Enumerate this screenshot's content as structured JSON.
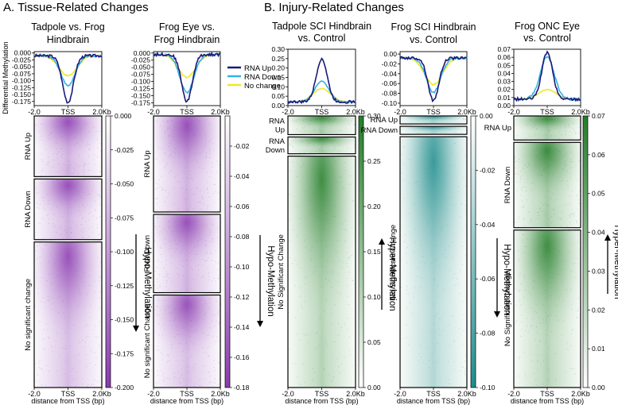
{
  "sections": {
    "a": "A. Tissue-Related Changes",
    "b": "B. Injury-Related Changes"
  },
  "common": {
    "ylabel": "Differential Methylation",
    "xlabel": "distance from TSS (bp)",
    "xticks": [
      "-2.0",
      "TSS",
      "2.0Kb"
    ]
  },
  "legend": [
    "RNA Up",
    "RNA Down",
    "No change"
  ],
  "series_colors": {
    "RNA Up": "#1a1a7a",
    "RNA Down": "#3ab0e8",
    "No change": "#f2e62a"
  },
  "chart_data": [
    {
      "type": "line",
      "title_lines": [
        "Tadpole vs. Frog",
        "Hindbrain"
      ],
      "x": [
        -2.0,
        0.0,
        2.0
      ],
      "xticks": [
        "-2.0",
        "TSS",
        "2.0Kb"
      ],
      "ylim": [
        -0.19,
        0.005
      ],
      "yticks": [
        "0.000",
        "-0.025",
        "-0.050",
        "-0.075",
        "-0.100",
        "-0.125",
        "-0.150",
        "-0.175"
      ],
      "series": [
        {
          "name": "RNA Up",
          "baseline": -0.01,
          "peak": -0.178
        },
        {
          "name": "RNA Down",
          "baseline": -0.01,
          "peak": -0.118
        },
        {
          "name": "No change",
          "baseline": -0.01,
          "peak": -0.082
        }
      ],
      "heatmap": {
        "groups": [
          "RNA Up",
          "RNA Down",
          "No significant change"
        ],
        "group_sizes": [
          1,
          1,
          2.4
        ],
        "colorbar_ticks": [
          "0.000",
          "-0.025",
          "-0.050",
          "-0.075",
          "-0.100",
          "-0.125",
          "-0.150",
          "-0.175",
          "-0.200"
        ],
        "colorbar_range": [
          0.0,
          -0.2
        ],
        "colormap": "purple",
        "color": "#8a3ab0",
        "arrow": "down",
        "arrow_label": "Hypo-Methylation"
      }
    },
    {
      "type": "line",
      "title_lines": [
        "Frog Eye vs.",
        "Frog Hindbrain"
      ],
      "x": [
        -2.0,
        0.0,
        2.0
      ],
      "xticks": [
        "-2.0",
        "TSS",
        "2.0Kb"
      ],
      "ylim": [
        -0.185,
        0.005
      ],
      "yticks": [
        "0.000",
        "-0.025",
        "-0.050",
        "-0.075",
        "-0.100",
        "-0.125",
        "-0.150",
        "-0.175"
      ],
      "series": [
        {
          "name": "RNA Up",
          "baseline": -0.005,
          "peak": -0.17
        },
        {
          "name": "RNA Down",
          "baseline": -0.005,
          "peak": -0.138
        },
        {
          "name": "No change",
          "baseline": -0.005,
          "peak": -0.085
        }
      ],
      "heatmap": {
        "groups": [
          "RNA Up",
          "RNA Down",
          "No significant Change"
        ],
        "group_sizes": [
          1.35,
          1.1,
          1.3
        ],
        "colorbar_ticks": [
          "-0.02",
          "-0.04",
          "-0.06",
          "-0.08",
          "-0.10",
          "-0.12",
          "-0.14",
          "-0.16",
          "-0.18"
        ],
        "colorbar_range": [
          0.0,
          -0.18
        ],
        "colormap": "purple",
        "color": "#9b47d6",
        "arrow": "down",
        "arrow_label": "Hypo-Methylation"
      }
    },
    {
      "type": "line",
      "title_lines": [
        "Tadpole SCI Hindbrain",
        "vs. Control"
      ],
      "x": [
        -2.0,
        0.0,
        2.0
      ],
      "xticks": [
        "-2.0",
        "TSS",
        "2.0Kb"
      ],
      "ylim": [
        0.0,
        0.3
      ],
      "yticks": [
        "0.00",
        "0.05",
        "0.10",
        "0.15",
        "0.20",
        "0.25",
        "0.30"
      ],
      "series": [
        {
          "name": "RNA Up",
          "baseline": 0.02,
          "peak": 0.25
        },
        {
          "name": "RNA Down",
          "baseline": 0.02,
          "peak": 0.13
        },
        {
          "name": "No change",
          "baseline": 0.02,
          "peak": 0.09
        }
      ],
      "heatmap": {
        "groups": [
          "RNA Up",
          "RNA Down",
          "No Significant Change"
        ],
        "group_sizes": [
          0.5,
          0.45,
          6.2
        ],
        "colorbar_ticks": [
          "0.30",
          "0.25",
          "0.20",
          "0.15",
          "0.10",
          "0.05",
          "0.00"
        ],
        "colorbar_range": [
          0.3,
          0.0
        ],
        "colormap": "green",
        "color": "#2e8b2e",
        "arrow": "up",
        "arrow_label": "Hyper-Methylation"
      }
    },
    {
      "type": "line",
      "title_lines": [
        "Frog SCI Hindbrain",
        "vs. Control"
      ],
      "x": [
        -2.0,
        0.0,
        2.0
      ],
      "xticks": [
        "-2.0",
        "TSS",
        "2.0Kb"
      ],
      "ylim": [
        -0.105,
        0.005
      ],
      "yticks": [
        "0.00",
        "-0.02",
        "-0.04",
        "-0.06",
        "-0.08",
        "-0.10"
      ],
      "series": [
        {
          "name": "RNA Up",
          "baseline": -0.008,
          "peak": -0.095
        },
        {
          "name": "RNA Down",
          "baseline": -0.008,
          "peak": -0.078
        },
        {
          "name": "No change",
          "baseline": -0.008,
          "peak": -0.062
        }
      ],
      "heatmap": {
        "groups": [
          "RNA Up",
          "RNA Down",
          "No Significant Change"
        ],
        "group_sizes": [
          0.3,
          0.3,
          9.4
        ],
        "colorbar_ticks": [
          "0.00",
          "-0.02",
          "-0.04",
          "-0.06",
          "-0.08",
          "-0.10"
        ],
        "colorbar_range": [
          0.0,
          -0.1
        ],
        "colormap": "teal",
        "color": "#2a9a9a",
        "arrow": "down",
        "arrow_label": "Hypo-Methylation"
      }
    },
    {
      "type": "line",
      "title_lines": [
        "Frog ONC Eye",
        "vs. Control"
      ],
      "x": [
        -2.0,
        0.0,
        2.0
      ],
      "xticks": [
        "-2.0",
        "TSS",
        "2.0Kb"
      ],
      "ylim": [
        0.0,
        0.07
      ],
      "yticks": [
        "0.00",
        "0.01",
        "0.02",
        "0.03",
        "0.04",
        "0.05",
        "0.06",
        "0.07"
      ],
      "series": [
        {
          "name": "RNA Up",
          "baseline": 0.008,
          "peak": 0.066
        },
        {
          "name": "RNA Down",
          "baseline": 0.008,
          "peak": 0.06
        },
        {
          "name": "No change",
          "baseline": 0.008,
          "peak": 0.02
        }
      ],
      "heatmap": {
        "groups": [
          "RNA Up",
          "RNA Down",
          "No Significant Change"
        ],
        "group_sizes": [
          0.55,
          1.95,
          3.6
        ],
        "colorbar_ticks": [
          "0.07",
          "0.06",
          "0.05",
          "0.04",
          "0.03",
          "0.02",
          "0.01",
          "0.00"
        ],
        "colorbar_range": [
          0.07,
          0.0
        ],
        "colormap": "green",
        "color": "#2e8b2e",
        "arrow": "up",
        "arrow_label": "Hyper-Methylation"
      }
    }
  ]
}
